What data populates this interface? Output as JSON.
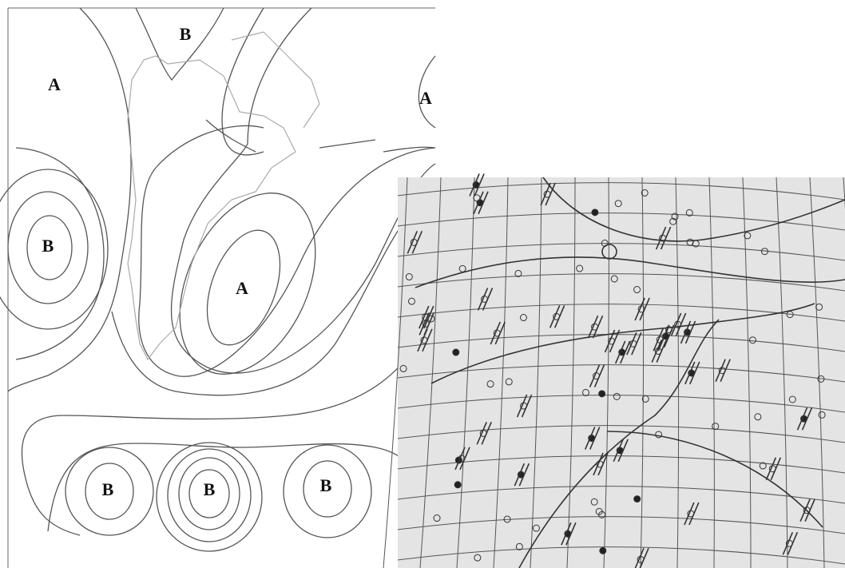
{
  "left_map": {
    "labels": [
      "B",
      "A",
      "A",
      "B",
      "A",
      "B",
      "B",
      "B"
    ]
  }
}
